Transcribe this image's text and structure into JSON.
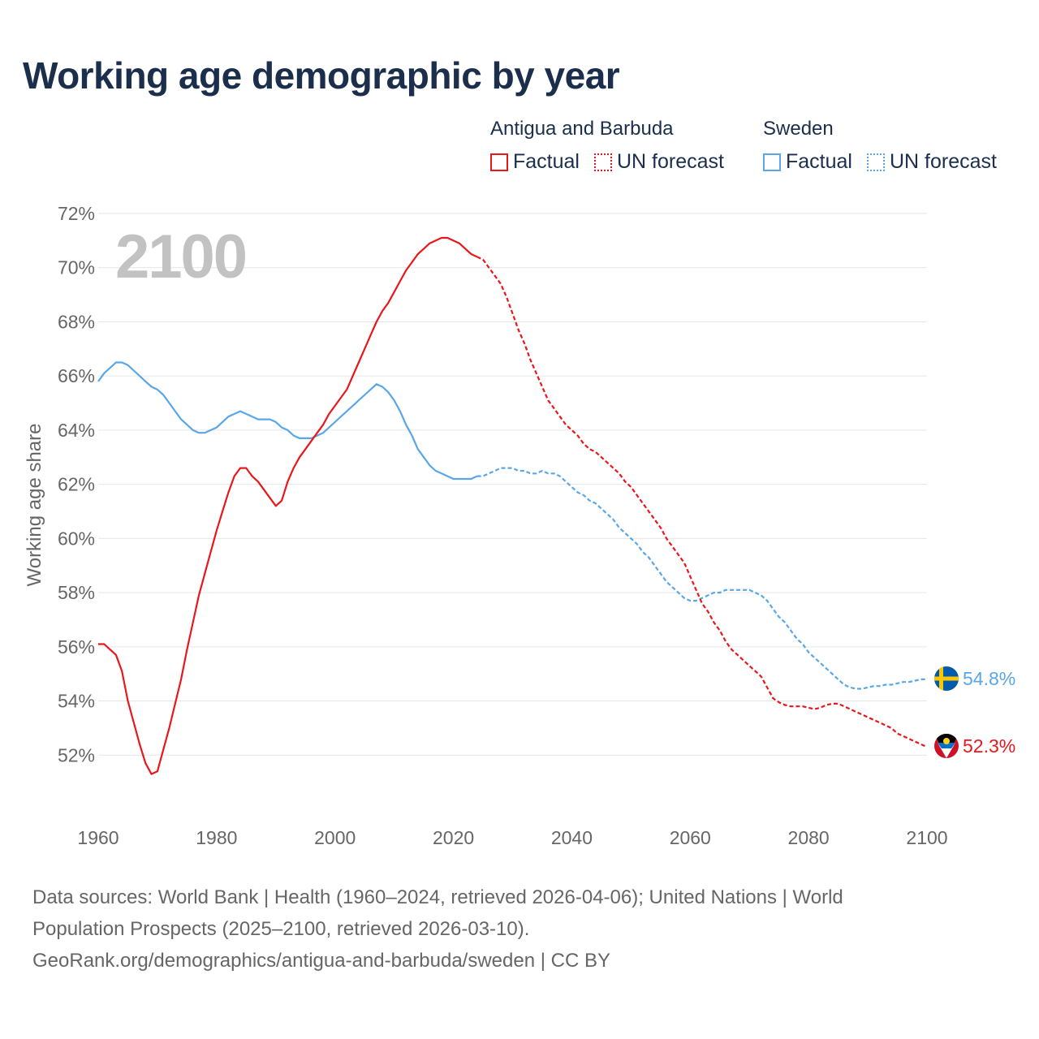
{
  "title": "Working age demographic by year",
  "legend": {
    "groups": [
      {
        "name": "Antigua and Barbuda",
        "color": "#e8171c",
        "factual_label": "Factual",
        "forecast_label": "UN forecast"
      },
      {
        "name": "Sweden",
        "color": "#5aa6e6",
        "factual_label": "Factual",
        "forecast_label": "UN forecast"
      }
    ]
  },
  "year_watermark": "2100",
  "footer": {
    "line1": "Data sources: World Bank | Health (1960–2024, retrieved 2026-04-06); United Nations | World",
    "line2": "Population Prospects (2025–2100, retrieved 2026-03-10).",
    "line3": "GeoRank.org/demographics/antigua-and-barbuda/sweden | CC BY"
  },
  "chart_data": {
    "type": "line",
    "title": "Working age demographic by year",
    "xlabel": "",
    "ylabel": "Working age share",
    "xlim": [
      1960,
      2100
    ],
    "ylim": [
      50,
      72
    ],
    "x_ticks": [
      1960,
      1980,
      2000,
      2020,
      2040,
      2060,
      2080,
      2100
    ],
    "x_tick_labels": [
      "1960",
      "1980",
      "2000",
      "2020",
      "2040",
      "2060",
      "2080",
      "2100"
    ],
    "y_ticks": [
      52,
      54,
      56,
      58,
      60,
      62,
      64,
      66,
      68,
      70,
      72
    ],
    "y_tick_labels": [
      "52%",
      "54%",
      "56%",
      "58%",
      "60%",
      "62%",
      "64%",
      "66%",
      "68%",
      "70%",
      "72%"
    ],
    "factual_until": 2024,
    "series": [
      {
        "name": "Antigua and Barbuda",
        "color": "#e8171c",
        "end_label": "52.3%",
        "points": [
          [
            1960,
            56.1
          ],
          [
            1961,
            56.1
          ],
          [
            1962,
            55.9
          ],
          [
            1963,
            55.7
          ],
          [
            1964,
            55.1
          ],
          [
            1965,
            54.0
          ],
          [
            1966,
            53.2
          ],
          [
            1967,
            52.4
          ],
          [
            1968,
            51.7
          ],
          [
            1969,
            51.3
          ],
          [
            1970,
            51.4
          ],
          [
            1971,
            52.2
          ],
          [
            1972,
            53.0
          ],
          [
            1973,
            53.9
          ],
          [
            1974,
            54.8
          ],
          [
            1975,
            55.9
          ],
          [
            1976,
            56.9
          ],
          [
            1977,
            57.9
          ],
          [
            1978,
            58.7
          ],
          [
            1979,
            59.5
          ],
          [
            1980,
            60.3
          ],
          [
            1981,
            61.0
          ],
          [
            1982,
            61.7
          ],
          [
            1983,
            62.3
          ],
          [
            1984,
            62.6
          ],
          [
            1985,
            62.6
          ],
          [
            1986,
            62.3
          ],
          [
            1987,
            62.1
          ],
          [
            1988,
            61.8
          ],
          [
            1989,
            61.5
          ],
          [
            1990,
            61.2
          ],
          [
            1991,
            61.4
          ],
          [
            1992,
            62.1
          ],
          [
            1993,
            62.6
          ],
          [
            1994,
            63.0
          ],
          [
            1995,
            63.3
          ],
          [
            1996,
            63.6
          ],
          [
            1997,
            63.9
          ],
          [
            1998,
            64.2
          ],
          [
            1999,
            64.6
          ],
          [
            2000,
            64.9
          ],
          [
            2001,
            65.2
          ],
          [
            2002,
            65.5
          ],
          [
            2003,
            66.0
          ],
          [
            2004,
            66.5
          ],
          [
            2005,
            67.0
          ],
          [
            2006,
            67.5
          ],
          [
            2007,
            68.0
          ],
          [
            2008,
            68.4
          ],
          [
            2009,
            68.7
          ],
          [
            2010,
            69.1
          ],
          [
            2011,
            69.5
          ],
          [
            2012,
            69.9
          ],
          [
            2013,
            70.2
          ],
          [
            2014,
            70.5
          ],
          [
            2015,
            70.7
          ],
          [
            2016,
            70.9
          ],
          [
            2017,
            71.0
          ],
          [
            2018,
            71.1
          ],
          [
            2019,
            71.1
          ],
          [
            2020,
            71.0
          ],
          [
            2021,
            70.9
          ],
          [
            2022,
            70.7
          ],
          [
            2023,
            70.5
          ],
          [
            2024,
            70.4
          ],
          [
            2025,
            70.3
          ],
          [
            2026,
            70.0
          ],
          [
            2027,
            69.7
          ],
          [
            2028,
            69.4
          ],
          [
            2029,
            68.9
          ],
          [
            2030,
            68.3
          ],
          [
            2031,
            67.7
          ],
          [
            2032,
            67.2
          ],
          [
            2033,
            66.6
          ],
          [
            2034,
            66.1
          ],
          [
            2035,
            65.6
          ],
          [
            2036,
            65.1
          ],
          [
            2037,
            64.8
          ],
          [
            2038,
            64.5
          ],
          [
            2039,
            64.2
          ],
          [
            2040,
            64.0
          ],
          [
            2041,
            63.8
          ],
          [
            2042,
            63.5
          ],
          [
            2043,
            63.3
          ],
          [
            2044,
            63.2
          ],
          [
            2045,
            63.0
          ],
          [
            2046,
            62.8
          ],
          [
            2047,
            62.6
          ],
          [
            2048,
            62.4
          ],
          [
            2049,
            62.1
          ],
          [
            2050,
            61.9
          ],
          [
            2051,
            61.6
          ],
          [
            2052,
            61.3
          ],
          [
            2053,
            61.0
          ],
          [
            2054,
            60.7
          ],
          [
            2055,
            60.4
          ],
          [
            2056,
            60.0
          ],
          [
            2057,
            59.7
          ],
          [
            2058,
            59.4
          ],
          [
            2059,
            59.1
          ],
          [
            2060,
            58.6
          ],
          [
            2061,
            58.1
          ],
          [
            2062,
            57.6
          ],
          [
            2063,
            57.3
          ],
          [
            2064,
            56.9
          ],
          [
            2065,
            56.6
          ],
          [
            2066,
            56.2
          ],
          [
            2067,
            55.9
          ],
          [
            2068,
            55.7
          ],
          [
            2069,
            55.5
          ],
          [
            2070,
            55.3
          ],
          [
            2071,
            55.1
          ],
          [
            2072,
            54.9
          ],
          [
            2073,
            54.5
          ],
          [
            2074,
            54.1
          ],
          [
            2075,
            53.95
          ],
          [
            2076,
            53.85
          ],
          [
            2077,
            53.8
          ],
          [
            2078,
            53.8
          ],
          [
            2079,
            53.8
          ],
          [
            2080,
            53.75
          ],
          [
            2081,
            53.7
          ],
          [
            2082,
            53.75
          ],
          [
            2083,
            53.85
          ],
          [
            2084,
            53.9
          ],
          [
            2085,
            53.9
          ],
          [
            2086,
            53.8
          ],
          [
            2087,
            53.7
          ],
          [
            2088,
            53.6
          ],
          [
            2089,
            53.5
          ],
          [
            2090,
            53.4
          ],
          [
            2091,
            53.3
          ],
          [
            2092,
            53.2
          ],
          [
            2093,
            53.1
          ],
          [
            2094,
            53.0
          ],
          [
            2095,
            52.8
          ],
          [
            2096,
            52.7
          ],
          [
            2097,
            52.6
          ],
          [
            2098,
            52.5
          ],
          [
            2099,
            52.4
          ],
          [
            2100,
            52.3
          ]
        ]
      },
      {
        "name": "Sweden",
        "color": "#5aa6e6",
        "end_label": "54.8%",
        "points": [
          [
            1960,
            65.8
          ],
          [
            1961,
            66.1
          ],
          [
            1962,
            66.3
          ],
          [
            1963,
            66.5
          ],
          [
            1964,
            66.5
          ],
          [
            1965,
            66.4
          ],
          [
            1966,
            66.2
          ],
          [
            1967,
            66.0
          ],
          [
            1968,
            65.8
          ],
          [
            1969,
            65.6
          ],
          [
            1970,
            65.5
          ],
          [
            1971,
            65.3
          ],
          [
            1972,
            65.0
          ],
          [
            1973,
            64.7
          ],
          [
            1974,
            64.4
          ],
          [
            1975,
            64.2
          ],
          [
            1976,
            64.0
          ],
          [
            1977,
            63.9
          ],
          [
            1978,
            63.9
          ],
          [
            1979,
            64.0
          ],
          [
            1980,
            64.1
          ],
          [
            1981,
            64.3
          ],
          [
            1982,
            64.5
          ],
          [
            1983,
            64.6
          ],
          [
            1984,
            64.7
          ],
          [
            1985,
            64.6
          ],
          [
            1986,
            64.5
          ],
          [
            1987,
            64.4
          ],
          [
            1988,
            64.4
          ],
          [
            1989,
            64.4
          ],
          [
            1990,
            64.3
          ],
          [
            1991,
            64.1
          ],
          [
            1992,
            64.0
          ],
          [
            1993,
            63.8
          ],
          [
            1994,
            63.7
          ],
          [
            1995,
            63.7
          ],
          [
            1996,
            63.7
          ],
          [
            1997,
            63.8
          ],
          [
            1998,
            63.9
          ],
          [
            1999,
            64.1
          ],
          [
            2000,
            64.3
          ],
          [
            2001,
            64.5
          ],
          [
            2002,
            64.7
          ],
          [
            2003,
            64.9
          ],
          [
            2004,
            65.1
          ],
          [
            2005,
            65.3
          ],
          [
            2006,
            65.5
          ],
          [
            2007,
            65.7
          ],
          [
            2008,
            65.6
          ],
          [
            2009,
            65.4
          ],
          [
            2010,
            65.1
          ],
          [
            2011,
            64.7
          ],
          [
            2012,
            64.2
          ],
          [
            2013,
            63.8
          ],
          [
            2014,
            63.3
          ],
          [
            2015,
            63.0
          ],
          [
            2016,
            62.7
          ],
          [
            2017,
            62.5
          ],
          [
            2018,
            62.4
          ],
          [
            2019,
            62.3
          ],
          [
            2020,
            62.2
          ],
          [
            2021,
            62.2
          ],
          [
            2022,
            62.2
          ],
          [
            2023,
            62.2
          ],
          [
            2024,
            62.3
          ],
          [
            2025,
            62.3
          ],
          [
            2026,
            62.4
          ],
          [
            2027,
            62.5
          ],
          [
            2028,
            62.6
          ],
          [
            2029,
            62.6
          ],
          [
            2030,
            62.6
          ],
          [
            2031,
            62.5
          ],
          [
            2032,
            62.5
          ],
          [
            2033,
            62.4
          ],
          [
            2034,
            62.4
          ],
          [
            2035,
            62.5
          ],
          [
            2036,
            62.4
          ],
          [
            2037,
            62.4
          ],
          [
            2038,
            62.3
          ],
          [
            2039,
            62.1
          ],
          [
            2040,
            61.9
          ],
          [
            2041,
            61.7
          ],
          [
            2042,
            61.6
          ],
          [
            2043,
            61.4
          ],
          [
            2044,
            61.3
          ],
          [
            2045,
            61.1
          ],
          [
            2046,
            60.9
          ],
          [
            2047,
            60.7
          ],
          [
            2048,
            60.4
          ],
          [
            2049,
            60.2
          ],
          [
            2050,
            60.0
          ],
          [
            2051,
            59.8
          ],
          [
            2052,
            59.5
          ],
          [
            2053,
            59.3
          ],
          [
            2054,
            59.0
          ],
          [
            2055,
            58.7
          ],
          [
            2056,
            58.4
          ],
          [
            2057,
            58.2
          ],
          [
            2058,
            58.0
          ],
          [
            2059,
            57.8
          ],
          [
            2060,
            57.7
          ],
          [
            2061,
            57.7
          ],
          [
            2062,
            57.8
          ],
          [
            2063,
            57.9
          ],
          [
            2064,
            58.0
          ],
          [
            2065,
            58.0
          ],
          [
            2066,
            58.1
          ],
          [
            2067,
            58.1
          ],
          [
            2068,
            58.1
          ],
          [
            2069,
            58.1
          ],
          [
            2070,
            58.1
          ],
          [
            2071,
            58.0
          ],
          [
            2072,
            57.9
          ],
          [
            2073,
            57.7
          ],
          [
            2074,
            57.4
          ],
          [
            2075,
            57.1
          ],
          [
            2076,
            56.9
          ],
          [
            2077,
            56.6
          ],
          [
            2078,
            56.3
          ],
          [
            2079,
            56.1
          ],
          [
            2080,
            55.8
          ],
          [
            2081,
            55.6
          ],
          [
            2082,
            55.4
          ],
          [
            2083,
            55.2
          ],
          [
            2084,
            55.0
          ],
          [
            2085,
            54.8
          ],
          [
            2086,
            54.6
          ],
          [
            2087,
            54.5
          ],
          [
            2088,
            54.45
          ],
          [
            2089,
            54.45
          ],
          [
            2090,
            54.5
          ],
          [
            2091,
            54.55
          ],
          [
            2092,
            54.55
          ],
          [
            2093,
            54.6
          ],
          [
            2094,
            54.6
          ],
          [
            2095,
            54.65
          ],
          [
            2096,
            54.7
          ],
          [
            2097,
            54.7
          ],
          [
            2098,
            54.75
          ],
          [
            2099,
            54.8
          ],
          [
            2100,
            54.8
          ]
        ]
      }
    ]
  }
}
